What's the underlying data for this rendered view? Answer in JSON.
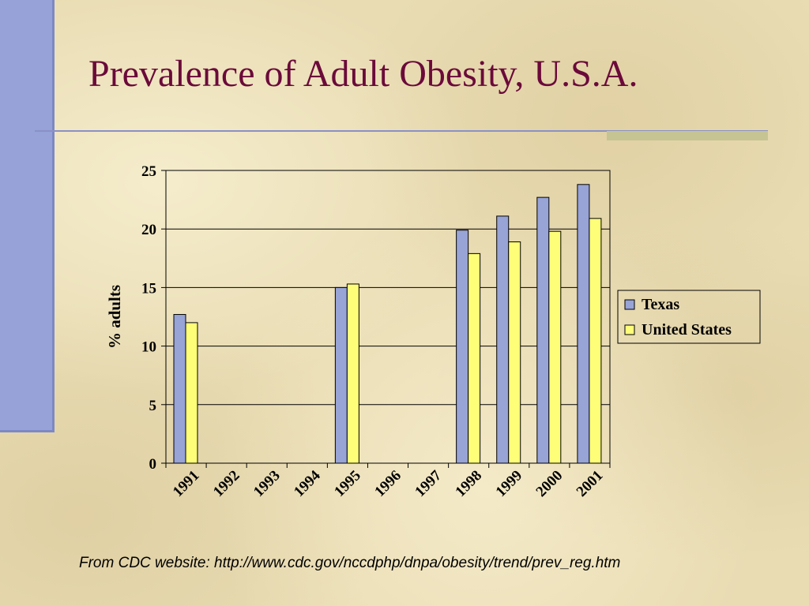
{
  "slide": {
    "title": "Prevalence of Adult Obesity, U.S.A.",
    "source": "From CDC website:  http://www.cdc.gov/nccdphp/dnpa/obesity/trend/prev_reg.htm"
  },
  "colors": {
    "background": "#e9dcb3",
    "title": "#6b0a3a",
    "side_bar": "#96a2d8",
    "texas_bar": "#98a3d6",
    "us_bar": "#fefe78"
  },
  "chart_data": {
    "type": "bar",
    "categories": [
      "1991",
      "1992",
      "1993",
      "1994",
      "1995",
      "1996",
      "1997",
      "1998",
      "1999",
      "2000",
      "2001"
    ],
    "series": [
      {
        "name": "Texas",
        "values": [
          12.7,
          null,
          null,
          null,
          15.0,
          null,
          null,
          19.9,
          21.1,
          22.7,
          23.8
        ]
      },
      {
        "name": "United States",
        "values": [
          12.0,
          null,
          null,
          null,
          15.3,
          null,
          null,
          17.9,
          18.9,
          19.8,
          20.9
        ]
      }
    ],
    "ylabel": "% adults",
    "xlabel": "",
    "ylim": [
      0,
      25
    ],
    "yticks": [
      "0",
      "5",
      "10",
      "15",
      "20",
      "25"
    ],
    "grid": true,
    "legend_position": "right"
  }
}
